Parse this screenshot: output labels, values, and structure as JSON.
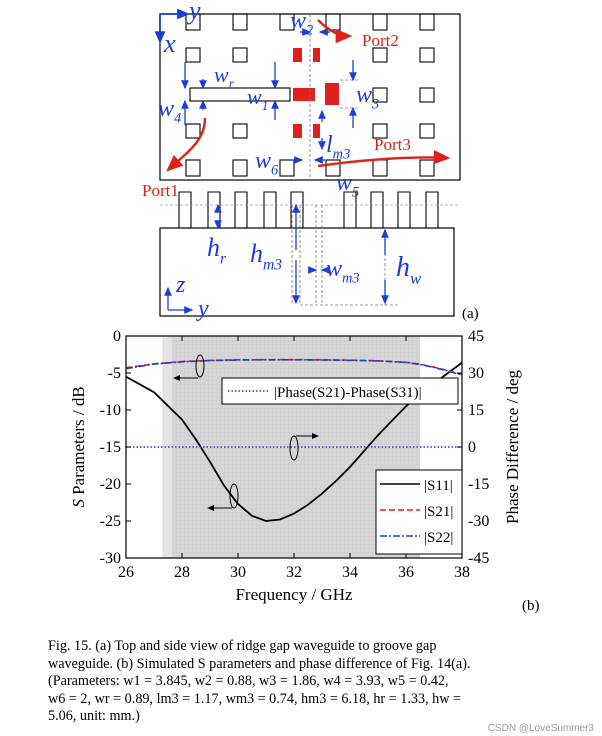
{
  "figure_a": {
    "panel_label": "(a)",
    "ports": {
      "port1": "Port1",
      "port2": "Port2",
      "port3": "Port3"
    },
    "axes_top": {
      "y": "y",
      "x": "x"
    },
    "axes_side": {
      "z": "z",
      "y": "y"
    },
    "params": [
      {
        "base": "w",
        "sub": "2"
      },
      {
        "base": "w",
        "sub": "r"
      },
      {
        "base": "w",
        "sub": "1"
      },
      {
        "base": "w",
        "sub": "3"
      },
      {
        "base": "w",
        "sub": "4"
      },
      {
        "base": "w",
        "sub": "6"
      },
      {
        "base": "l",
        "sub": "m3"
      },
      {
        "base": "w",
        "sub": "5"
      },
      {
        "base": "h",
        "sub": "r"
      },
      {
        "base": "h",
        "sub": "m3"
      },
      {
        "base": "w",
        "sub": "m3"
      },
      {
        "base": "h",
        "sub": "w"
      }
    ],
    "colors": {
      "annot": "#1a3fd6",
      "ridge": "#e0201a"
    }
  },
  "chart_data": {
    "type": "line",
    "panel_label": "(b)",
    "xlabel": "Frequency / GHz",
    "ylabel_left": "S Parameters / dB",
    "ylabel_right": "Phase Difference / deg",
    "xlim": [
      26,
      38
    ],
    "ylim_left": [
      -30,
      0
    ],
    "ylim_right": [
      -45,
      45
    ],
    "x_ticks": [
      "26",
      "28",
      "30",
      "32",
      "34",
      "36",
      "38"
    ],
    "y_ticks_left": [
      "0",
      "-5",
      "-10",
      "-15",
      "-20",
      "-25",
      "-30"
    ],
    "y_ticks_right": [
      "45",
      "30",
      "15",
      "0",
      "-15",
      "-30",
      "-45"
    ],
    "shaded_band_ghz": [
      27.3,
      36.5
    ],
    "series": [
      {
        "name": "|S11|",
        "axis": "left",
        "color": "#000000",
        "style": "solid",
        "x": [
          26,
          27,
          28,
          28.5,
          29,
          29.5,
          30,
          30.5,
          31,
          31.5,
          32,
          32.5,
          33,
          33.5,
          34,
          35,
          36,
          37,
          38
        ],
        "y": [
          -5.5,
          -7.6,
          -11.3,
          -14.0,
          -17.0,
          -20.2,
          -22.7,
          -24.3,
          -25.0,
          -24.8,
          -24.0,
          -22.8,
          -21.3,
          -19.6,
          -17.7,
          -13.4,
          -9.5,
          -6.4,
          -3.6
        ]
      },
      {
        "name": "|S21|",
        "axis": "left",
        "color": "#e0201a",
        "style": "dashed",
        "x": [
          26,
          27,
          28,
          29,
          30,
          31,
          32,
          33,
          34,
          35,
          36,
          36.5,
          37,
          37.5,
          38
        ],
        "y": [
          -4.3,
          -3.75,
          -3.45,
          -3.3,
          -3.22,
          -3.2,
          -3.2,
          -3.22,
          -3.27,
          -3.35,
          -3.55,
          -3.8,
          -4.2,
          -4.7,
          -5.2
        ]
      },
      {
        "name": "|S22|",
        "axis": "left",
        "color": "#1a3fd6",
        "style": "dashdot",
        "x": [
          26,
          27,
          28,
          29,
          30,
          31,
          32,
          33,
          34,
          35,
          36,
          36.5,
          37,
          37.5,
          38
        ],
        "y": [
          -4.4,
          -3.8,
          -3.48,
          -3.32,
          -3.24,
          -3.22,
          -3.22,
          -3.24,
          -3.29,
          -3.37,
          -3.58,
          -3.85,
          -4.25,
          -4.75,
          -5.25
        ]
      },
      {
        "name": "|Phase(S21)-Phase(S31)|",
        "axis": "right",
        "color": "#1a3fd6",
        "style": "dotted",
        "x": [
          26,
          38
        ],
        "y": [
          0,
          0
        ]
      }
    ],
    "legend": [
      "|S11|",
      "|S21|",
      "|S22|"
    ],
    "legend_phase": "|Phase(S21)-Phase(S31)|",
    "legend_position": "bottom-right"
  },
  "caption": {
    "lines": [
      "Fig. 15.    (a) Top and side view of ridge gap waveguide to groove gap",
      "waveguide. (b) Simulated S parameters and phase difference of Fig. 14(a).",
      "(Parameters: w1 = 3.845, w2 = 0.88, w3 = 1.86, w4 = 3.93, w5 = 0.42,",
      "w6 = 2, wr = 0.89, lm3 = 1.17, wm3 = 0.74, hm3 = 6.18, hr = 1.33, hw =",
      "5.06, unit: mm.)"
    ]
  },
  "watermark": "CSDN @LoveSummer3"
}
